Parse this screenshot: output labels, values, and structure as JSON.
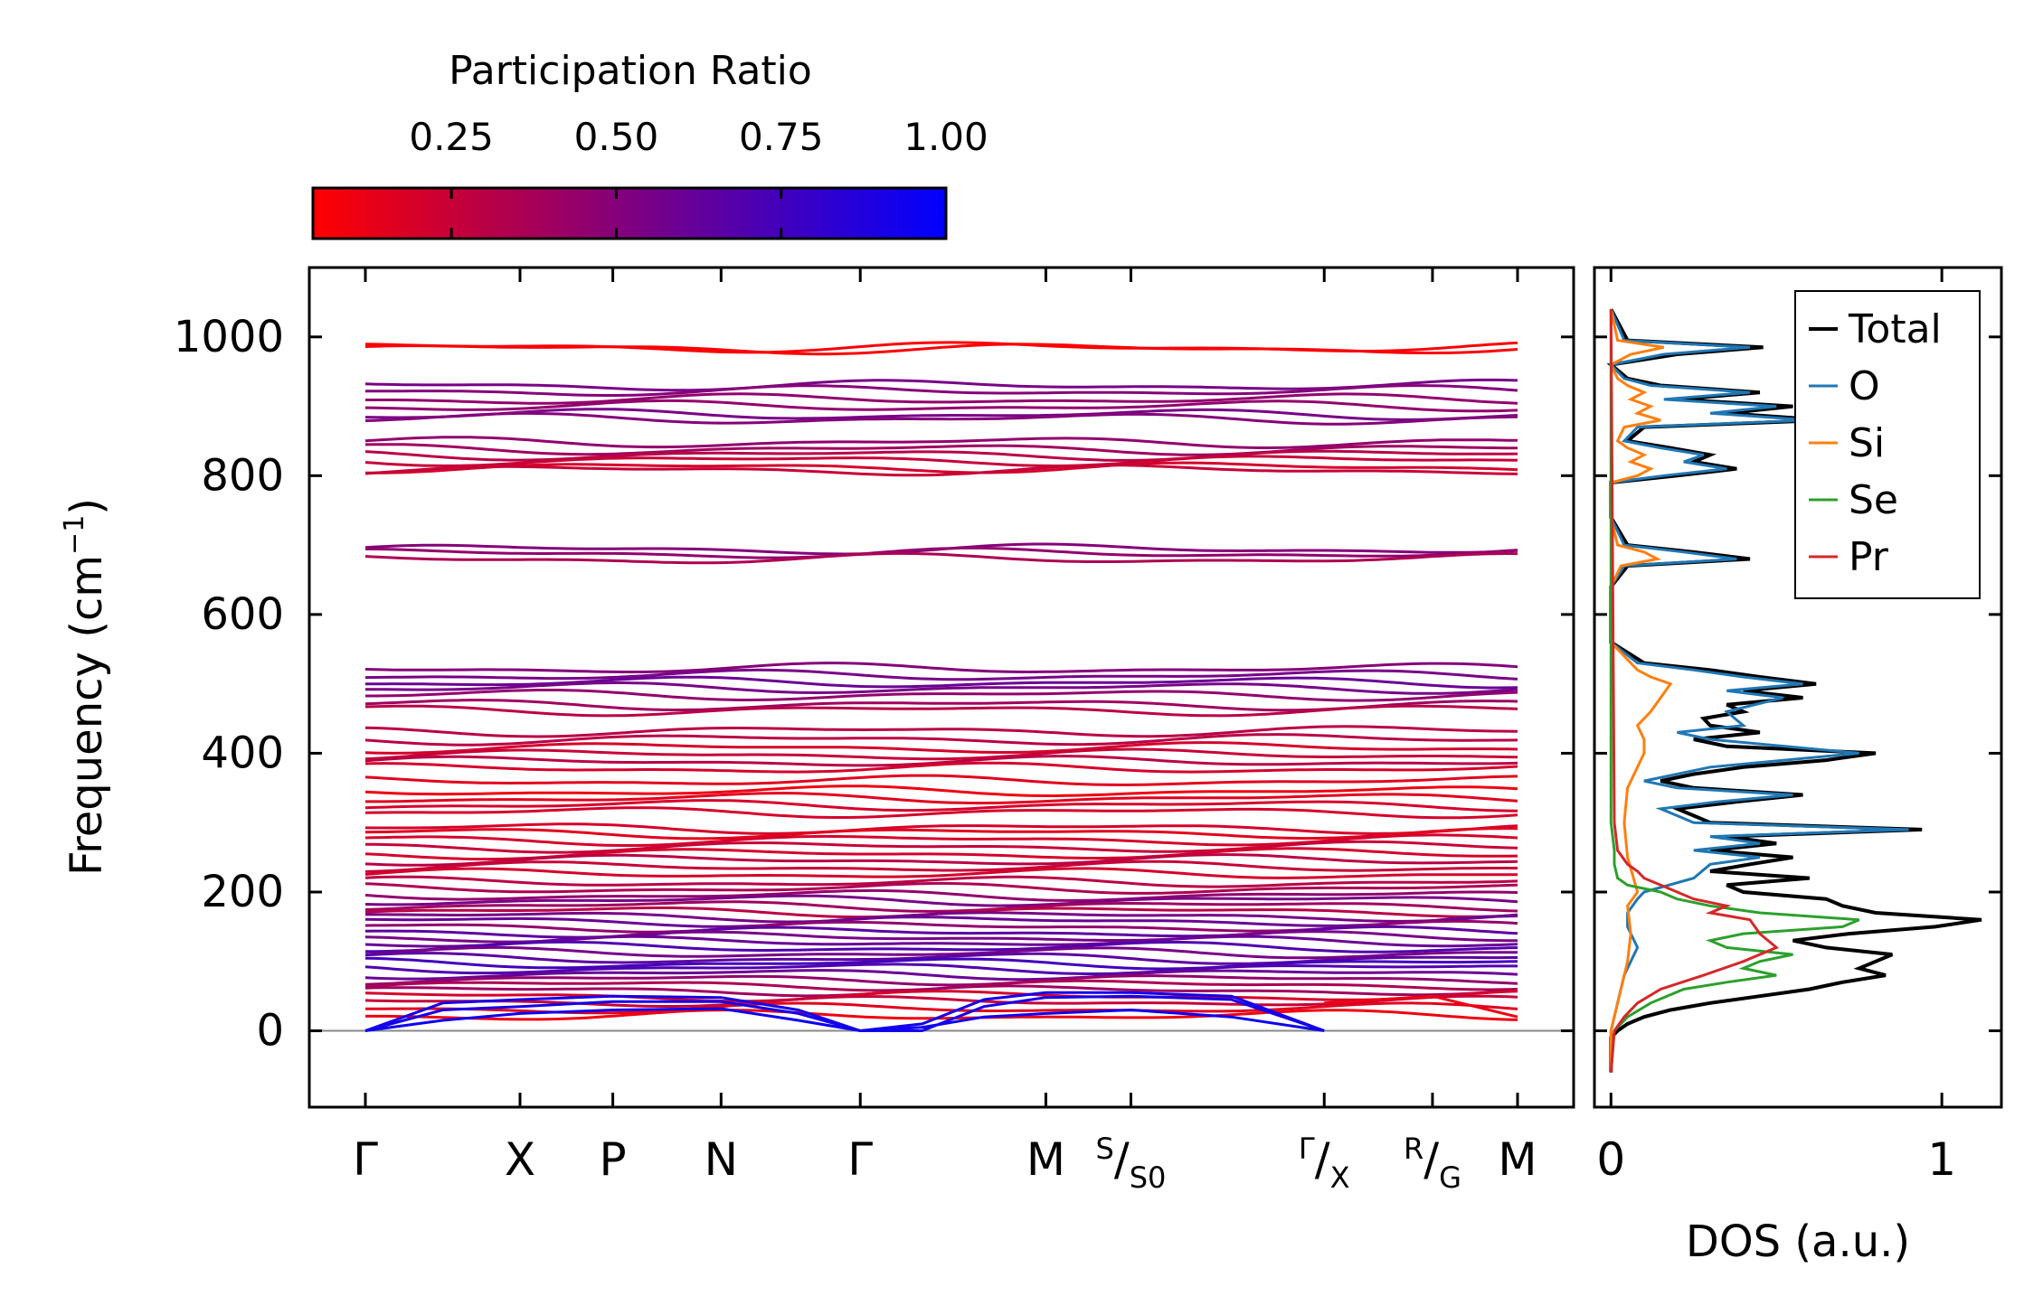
{
  "chart_data": [
    {
      "type": "line",
      "name": "phonon-band-structure",
      "ylabel": "Frequency (cm",
      "ylabel_sup": "−1",
      "ylabel_close": ")",
      "ylim": [
        -110,
        1100
      ],
      "yticks": [
        0,
        200,
        400,
        600,
        800,
        1000
      ],
      "ytick_labels": [
        "0",
        "200",
        "400",
        "600",
        "800",
        "1000"
      ],
      "path_segments": [
        {
          "label": "Γ",
          "start": 0.0
        },
        {
          "label": "X",
          "start": 1.0
        },
        {
          "label": "P",
          "start": 1.6
        },
        {
          "label": "N",
          "start": 2.3
        },
        {
          "label": "Γ",
          "start": 3.2
        },
        {
          "label": "M",
          "start": 4.4
        },
        {
          "label": "S",
          "sub": "S0",
          "start": 4.95
        },
        {
          "label": "Γ",
          "sub": "X",
          "start": 6.2
        },
        {
          "label": "R",
          "sub": "G",
          "start": 6.9
        },
        {
          "label": "M",
          "start": 7.45
        }
      ],
      "x_max": 7.45,
      "color_scale": {
        "low": "#ff0000",
        "high": "#0000ff"
      },
      "bands_base": [
        {
          "f": 983,
          "pr": 0.05
        },
        {
          "f": 985,
          "pr": 0.05
        },
        {
          "f": 930,
          "pr": 0.55
        },
        {
          "f": 922,
          "pr": 0.5
        },
        {
          "f": 910,
          "pr": 0.45
        },
        {
          "f": 900,
          "pr": 0.45
        },
        {
          "f": 888,
          "pr": 0.55
        },
        {
          "f": 882,
          "pr": 0.5
        },
        {
          "f": 848,
          "pr": 0.45
        },
        {
          "f": 838,
          "pr": 0.4
        },
        {
          "f": 830,
          "pr": 0.3
        },
        {
          "f": 822,
          "pr": 0.25
        },
        {
          "f": 812,
          "pr": 0.2
        },
        {
          "f": 808,
          "pr": 0.25
        },
        {
          "f": 694,
          "pr": 0.5
        },
        {
          "f": 688,
          "pr": 0.45
        },
        {
          "f": 680,
          "pr": 0.35
        },
        {
          "f": 522,
          "pr": 0.5
        },
        {
          "f": 512,
          "pr": 0.55
        },
        {
          "f": 502,
          "pr": 0.6
        },
        {
          "f": 494,
          "pr": 0.55
        },
        {
          "f": 484,
          "pr": 0.45
        },
        {
          "f": 470,
          "pr": 0.4
        },
        {
          "f": 462,
          "pr": 0.3
        },
        {
          "f": 432,
          "pr": 0.3
        },
        {
          "f": 420,
          "pr": 0.3
        },
        {
          "f": 408,
          "pr": 0.2
        },
        {
          "f": 398,
          "pr": 0.25
        },
        {
          "f": 388,
          "pr": 0.3
        },
        {
          "f": 378,
          "pr": 0.2
        },
        {
          "f": 360,
          "pr": 0.15
        },
        {
          "f": 345,
          "pr": 0.1
        },
        {
          "f": 335,
          "pr": 0.15
        },
        {
          "f": 325,
          "pr": 0.2
        },
        {
          "f": 315,
          "pr": 0.2
        },
        {
          "f": 292,
          "pr": 0.2
        },
        {
          "f": 285,
          "pr": 0.15
        },
        {
          "f": 275,
          "pr": 0.2
        },
        {
          "f": 265,
          "pr": 0.25
        },
        {
          "f": 255,
          "pr": 0.2
        },
        {
          "f": 246,
          "pr": 0.3
        },
        {
          "f": 236,
          "pr": 0.25
        },
        {
          "f": 226,
          "pr": 0.2
        },
        {
          "f": 214,
          "pr": 0.3
        },
        {
          "f": 205,
          "pr": 0.35
        },
        {
          "f": 195,
          "pr": 0.45
        },
        {
          "f": 188,
          "pr": 0.55
        },
        {
          "f": 180,
          "pr": 0.4
        },
        {
          "f": 172,
          "pr": 0.3
        },
        {
          "f": 165,
          "pr": 0.55
        },
        {
          "f": 158,
          "pr": 0.6
        },
        {
          "f": 150,
          "pr": 0.45
        },
        {
          "f": 142,
          "pr": 0.65
        },
        {
          "f": 135,
          "pr": 0.55
        },
        {
          "f": 128,
          "pr": 0.6
        },
        {
          "f": 120,
          "pr": 0.7
        },
        {
          "f": 112,
          "pr": 0.55
        },
        {
          "f": 104,
          "pr": 0.65
        },
        {
          "f": 97,
          "pr": 0.75
        },
        {
          "f": 90,
          "pr": 0.7
        },
        {
          "f": 82,
          "pr": 0.6
        },
        {
          "f": 74,
          "pr": 0.45
        },
        {
          "f": 66,
          "pr": 0.35
        },
        {
          "f": 58,
          "pr": 0.4
        },
        {
          "f": 50,
          "pr": 0.2
        },
        {
          "f": 42,
          "pr": 0.25
        },
        {
          "f": 32,
          "pr": 0.15
        },
        {
          "f": 22,
          "pr": 0.1
        }
      ],
      "acoustic_bands": [
        {
          "pts": [
            [
              0,
              0
            ],
            [
              0.5,
              30
            ],
            [
              1.0,
              35
            ],
            [
              1.6,
              42
            ],
            [
              2.3,
              42
            ],
            [
              2.8,
              25
            ],
            [
              3.2,
              0
            ],
            [
              3.6,
              0
            ],
            [
              4.0,
              35
            ],
            [
              4.4,
              48
            ],
            [
              4.95,
              50
            ],
            [
              5.6,
              45
            ],
            [
              6.2,
              0
            ]
          ],
          "pr": 0.92
        },
        {
          "pts": [
            [
              0,
              0
            ],
            [
              0.5,
              40
            ],
            [
              1.0,
              45
            ],
            [
              1.6,
              50
            ],
            [
              2.3,
              48
            ],
            [
              2.8,
              30
            ],
            [
              3.2,
              0
            ],
            [
              3.6,
              10
            ],
            [
              4.0,
              45
            ],
            [
              4.4,
              55
            ],
            [
              4.95,
              55
            ],
            [
              5.6,
              50
            ],
            [
              6.2,
              0
            ]
          ],
          "pr": 0.92
        },
        {
          "pts": [
            [
              0,
              0
            ],
            [
              0.5,
              15
            ],
            [
              1.0,
              25
            ],
            [
              1.6,
              30
            ],
            [
              2.3,
              32
            ],
            [
              2.8,
              15
            ],
            [
              3.2,
              0
            ],
            [
              3.6,
              5
            ],
            [
              4.0,
              20
            ],
            [
              4.4,
              25
            ],
            [
              4.95,
              30
            ],
            [
              5.6,
              20
            ],
            [
              6.2,
              0
            ]
          ],
          "pr": 0.95
        }
      ],
      "extra_tail_band": {
        "pts": [
          [
            6.2,
            40
          ],
          [
            6.9,
            50
          ],
          [
            7.45,
            20
          ]
        ],
        "pr": 0.1
      }
    },
    {
      "type": "line",
      "name": "density-of-states",
      "xlabel": "DOS (a.u.)",
      "xticks": [
        0,
        1
      ],
      "xtick_labels": [
        "0",
        "1"
      ],
      "xlim": [
        -0.05,
        1.18
      ],
      "ylim": [
        -110,
        1100
      ],
      "legend_position": "top-right",
      "series": [
        {
          "name": "Total",
          "color": "#000000",
          "f": [
            -60,
            -10,
            0,
            10,
            20,
            30,
            40,
            50,
            60,
            70,
            80,
            90,
            100,
            110,
            120,
            130,
            140,
            150,
            160,
            170,
            180,
            190,
            200,
            210,
            220,
            230,
            240,
            250,
            260,
            270,
            280,
            290,
            300,
            310,
            320,
            330,
            340,
            350,
            360,
            370,
            380,
            390,
            400,
            410,
            420,
            430,
            440,
            450,
            460,
            470,
            480,
            490,
            500,
            510,
            520,
            530,
            560,
            640,
            670,
            680,
            690,
            700,
            740,
            790,
            800,
            810,
            820,
            830,
            840,
            850,
            870,
            880,
            890,
            900,
            910,
            920,
            930,
            940,
            960,
            975,
            985,
            995,
            1040
          ],
          "v": [
            0,
            0,
            0.02,
            0.05,
            0.1,
            0.18,
            0.3,
            0.45,
            0.6,
            0.7,
            0.83,
            0.75,
            0.8,
            0.85,
            0.65,
            0.55,
            0.72,
            0.98,
            1.12,
            0.8,
            0.7,
            0.65,
            0.4,
            0.35,
            0.6,
            0.3,
            0.42,
            0.55,
            0.3,
            0.5,
            0.35,
            0.94,
            0.3,
            0.25,
            0.2,
            0.38,
            0.58,
            0.25,
            0.15,
            0.25,
            0.4,
            0.65,
            0.8,
            0.35,
            0.25,
            0.45,
            0.3,
            0.28,
            0.4,
            0.35,
            0.58,
            0.4,
            0.62,
            0.45,
            0.3,
            0.1,
            0,
            0,
            0.05,
            0.42,
            0.25,
            0.05,
            0,
            0,
            0.2,
            0.38,
            0.25,
            0.3,
            0.18,
            0.05,
            0.1,
            0.65,
            0.35,
            0.55,
            0.2,
            0.45,
            0.15,
            0.05,
            0,
            0.2,
            0.46,
            0.05,
            0
          ]
        },
        {
          "name": "O",
          "color": "#1f77b4",
          "f": [
            -60,
            0,
            40,
            80,
            100,
            120,
            150,
            170,
            190,
            200,
            220,
            240,
            250,
            260,
            270,
            280,
            290,
            300,
            310,
            320,
            330,
            340,
            350,
            360,
            380,
            400,
            420,
            430,
            440,
            460,
            480,
            490,
            500,
            510,
            520,
            530,
            560,
            640,
            670,
            680,
            690,
            700,
            740,
            790,
            800,
            810,
            820,
            830,
            840,
            850,
            870,
            880,
            890,
            900,
            910,
            920,
            930,
            940,
            960,
            975,
            985,
            995,
            1040
          ],
          "v": [
            0,
            0,
            0.02,
            0.04,
            0.06,
            0.08,
            0.05,
            0.05,
            0.08,
            0.1,
            0.25,
            0.3,
            0.45,
            0.25,
            0.45,
            0.3,
            0.9,
            0.25,
            0.2,
            0.15,
            0.32,
            0.55,
            0.2,
            0.1,
            0.3,
            0.75,
            0.3,
            0.2,
            0.4,
            0.35,
            0.52,
            0.35,
            0.58,
            0.4,
            0.25,
            0.08,
            0,
            0,
            0.04,
            0.38,
            0.22,
            0.04,
            0,
            0,
            0.16,
            0.35,
            0.22,
            0.28,
            0.15,
            0.04,
            0.08,
            0.6,
            0.3,
            0.5,
            0.16,
            0.42,
            0.12,
            0.04,
            0,
            0.16,
            0.42,
            0.04,
            0
          ]
        },
        {
          "name": "Si",
          "color": "#ff7f0e",
          "f": [
            -60,
            0,
            60,
            100,
            140,
            180,
            200,
            250,
            300,
            350,
            380,
            400,
            420,
            440,
            460,
            480,
            500,
            510,
            520,
            560,
            640,
            670,
            680,
            690,
            700,
            740,
            790,
            800,
            810,
            820,
            830,
            840,
            850,
            870,
            880,
            890,
            900,
            910,
            920,
            930,
            940,
            960,
            975,
            985,
            995,
            1040
          ],
          "v": [
            0,
            0,
            0.03,
            0.05,
            0.06,
            0.05,
            0.08,
            0.05,
            0.04,
            0.05,
            0.08,
            0.1,
            0.1,
            0.08,
            0.12,
            0.15,
            0.18,
            0.12,
            0.08,
            0,
            0,
            0.03,
            0.14,
            0.1,
            0.02,
            0,
            0,
            0.08,
            0.12,
            0.06,
            0.1,
            0.05,
            0.02,
            0.04,
            0.15,
            0.08,
            0.12,
            0.06,
            0.1,
            0.05,
            0.02,
            0,
            0.06,
            0.16,
            0.02,
            0
          ]
        },
        {
          "name": "Se",
          "color": "#2ca02c",
          "f": [
            -60,
            0,
            20,
            40,
            60,
            70,
            80,
            90,
            100,
            110,
            120,
            130,
            140,
            150,
            160,
            170,
            180,
            190,
            200,
            210,
            220,
            240,
            260,
            300,
            1040
          ],
          "v": [
            0,
            0.01,
            0.05,
            0.12,
            0.22,
            0.35,
            0.5,
            0.4,
            0.45,
            0.55,
            0.35,
            0.3,
            0.4,
            0.7,
            0.75,
            0.45,
            0.3,
            0.2,
            0.15,
            0.05,
            0.02,
            0.01,
            0.01,
            0,
            0
          ]
        },
        {
          "name": "Pr",
          "color": "#d62728",
          "f": [
            -60,
            0,
            20,
            40,
            60,
            80,
            100,
            120,
            140,
            160,
            170,
            180,
            190,
            200,
            210,
            220,
            230,
            240,
            260,
            300,
            1040
          ],
          "v": [
            0,
            0.01,
            0.04,
            0.08,
            0.15,
            0.28,
            0.4,
            0.5,
            0.45,
            0.42,
            0.3,
            0.35,
            0.25,
            0.2,
            0.15,
            0.1,
            0.08,
            0.05,
            0.02,
            0.01,
            0
          ]
        }
      ]
    }
  ],
  "colorbar": {
    "title": "Participation Ratio",
    "ticks": [
      0.25,
      0.5,
      0.75,
      1.0
    ],
    "tick_labels": [
      "0.25",
      "0.50",
      "0.75",
      "1.00"
    ],
    "range": [
      0.04,
      1.0
    ],
    "color_low": "#ff0000",
    "color_high": "#0000ff"
  }
}
